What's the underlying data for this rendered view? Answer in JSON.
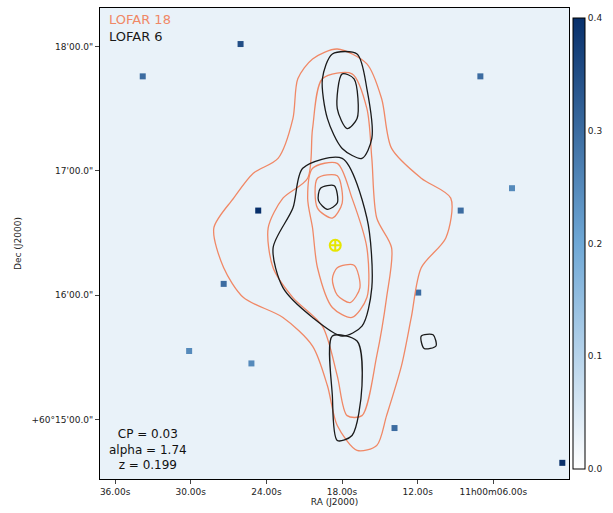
{
  "chart_data": {
    "type": "contour_overlay",
    "x_label": "RA (J2000)",
    "y_label": "Dec (J2000)",
    "xlim": [
      37.2,
      0.0
    ],
    "ylim": [
      14.52,
      18.31
    ],
    "xticks": [
      {
        "value": 36,
        "label": "36.00s"
      },
      {
        "value": 30,
        "label": "30.00s"
      },
      {
        "value": 24,
        "label": "24.00s"
      },
      {
        "value": 18,
        "label": "18.00s"
      },
      {
        "value": 12,
        "label": "12.00s"
      },
      {
        "value": 6,
        "label": "11h00m06.00s"
      }
    ],
    "yticks": [
      {
        "value": 15,
        "label": "+60°15'00.0\""
      },
      {
        "value": 16,
        "label": "16'00.0\""
      },
      {
        "value": 17,
        "label": "17'00.0\""
      },
      {
        "value": 18,
        "label": "18'00.0\""
      }
    ],
    "grid": false,
    "legend": "upper left",
    "annotations": [
      "CP = 0.03",
      "alpha = 1.74",
      "z = 0.199"
    ],
    "image": {
      "x": [
        37.2,
        0.0
      ],
      "y": [
        14.52,
        18.31
      ],
      "z": [
        [
          0.03,
          0.03
        ],
        [
          0.03,
          0.03
        ]
      ],
      "zlim": [
        0,
        0.4
      ],
      "zticks": [
        {
          "value": 0,
          "label": "0.0"
        },
        0.1,
        0.2,
        0.3,
        0.4
      ],
      "colors": [
        "#ffffff",
        "#6fa8d6",
        "#08306b"
      ]
    },
    "stars": {
      "x": [
        24.65,
        26.05,
        33.81,
        7.03,
        27.39,
        11.96,
        25.19,
        13.84,
        4.52,
        8.59,
        0.53,
        30.13
      ],
      "y": [
        16.68,
        18.02,
        17.76,
        17.76,
        16.09,
        16.02,
        15.45,
        14.93,
        16.86,
        16.68,
        14.65,
        15.55
      ],
      "values": [
        0.4,
        0.35,
        0.3,
        0.3,
        0.3,
        0.3,
        0.25,
        0.3,
        0.25,
        0.3,
        0.4,
        0.25
      ]
    },
    "host": {
      "x": 18.54,
      "y": 16.4,
      "color": "#e6e600",
      "marker": "circle-cross-open"
    },
    "series": [
      {
        "name": "LOFAR 18",
        "color": "#f08866",
        "contours": [
          {
            "x": [
              20.34,
              18.38,
              16.03,
              14.86,
              14.07,
              11.72,
              9.38,
              9.77,
              11.72,
              12.51,
              13.29,
              14.47,
              15.25,
              16.81,
              18.38,
              19.16,
              20.34,
              22.69,
              25.82,
              27.39,
              28.17,
              26.6,
              25.04,
              23.08,
              21.9,
              21.51
            ],
            "y": [
              17.9,
              17.98,
              17.86,
              17.58,
              17.18,
              16.94,
              16.78,
              16.46,
              16.22,
              15.82,
              15.43,
              15.03,
              14.79,
              14.75,
              14.95,
              15.27,
              15.59,
              15.82,
              15.98,
              16.22,
              16.54,
              16.78,
              16.98,
              17.1,
              17.42,
              17.74
            ]
          },
          {
            "x": [
              19.56,
              17.21,
              16.03,
              15.64,
              15.25,
              14.07,
              14.47,
              15.25,
              16.42,
              17.6,
              18.38,
              19.56,
              21.9,
              23.47,
              23.86,
              22.69,
              20.73,
              20.34
            ],
            "y": [
              17.74,
              17.78,
              17.5,
              17.1,
              16.62,
              16.38,
              15.98,
              15.51,
              15.03,
              15.03,
              15.35,
              15.75,
              15.98,
              16.22,
              16.54,
              16.78,
              16.94,
              17.34
            ]
          },
          {
            "x": [
              20.34,
              18.38,
              17.21,
              16.03,
              16.03,
              17.21,
              18.77,
              19.95,
              20.34,
              20.73
            ],
            "y": [
              17.02,
              17.06,
              16.78,
              16.38,
              15.98,
              15.82,
              15.9,
              16.22,
              16.54,
              16.78
            ]
          },
          {
            "x": [
              18.38,
              17.05,
              16.58,
              17.36,
              18.38,
              18.77
            ],
            "y": [
              16.22,
              16.24,
              16.06,
              15.94,
              16.0,
              16.13
            ]
          },
          {
            "x": [
              19.95,
              18.38,
              17.99,
              18.77,
              19.95
            ],
            "y": [
              16.94,
              16.96,
              16.74,
              16.62,
              16.7
            ]
          }
        ]
      },
      {
        "name": "LOFAR 6",
        "color": "#1a1a1a",
        "contours": [
          {
            "x": [
              18.77,
              16.81,
              16.03,
              15.64,
              16.42,
              17.99,
              19.16,
              19.56
            ],
            "y": [
              17.94,
              17.94,
              17.66,
              17.26,
              17.1,
              17.18,
              17.42,
              17.74
            ]
          },
          {
            "x": [
              17.99,
              17.05,
              16.81,
              17.6,
              18.38
            ],
            "y": [
              17.78,
              17.74,
              17.42,
              17.34,
              17.5
            ]
          },
          {
            "x": [
              21.12,
              17.99,
              16.03,
              15.64,
              16.42,
              17.99,
              20.34,
              22.69,
              23.47,
              21.9
            ],
            "y": [
              17.02,
              17.1,
              16.62,
              16.06,
              15.75,
              15.67,
              15.82,
              16.06,
              16.38,
              16.7
            ]
          },
          {
            "x": [
              19.71,
              18.62,
              18.38,
              19.16,
              19.87
            ],
            "y": [
              16.86,
              16.88,
              16.74,
              16.69,
              16.76
            ]
          },
          {
            "x": [
              18.77,
              16.81,
              16.42,
              17.21,
              18.38,
              18.77
            ],
            "y": [
              15.67,
              15.63,
              15.27,
              14.87,
              14.83,
              15.19
            ]
          },
          {
            "x": [
              11.72,
              10.78,
              10.55,
              11.49
            ],
            "y": [
              15.67,
              15.68,
              15.59,
              15.57
            ]
          }
        ]
      }
    ]
  }
}
